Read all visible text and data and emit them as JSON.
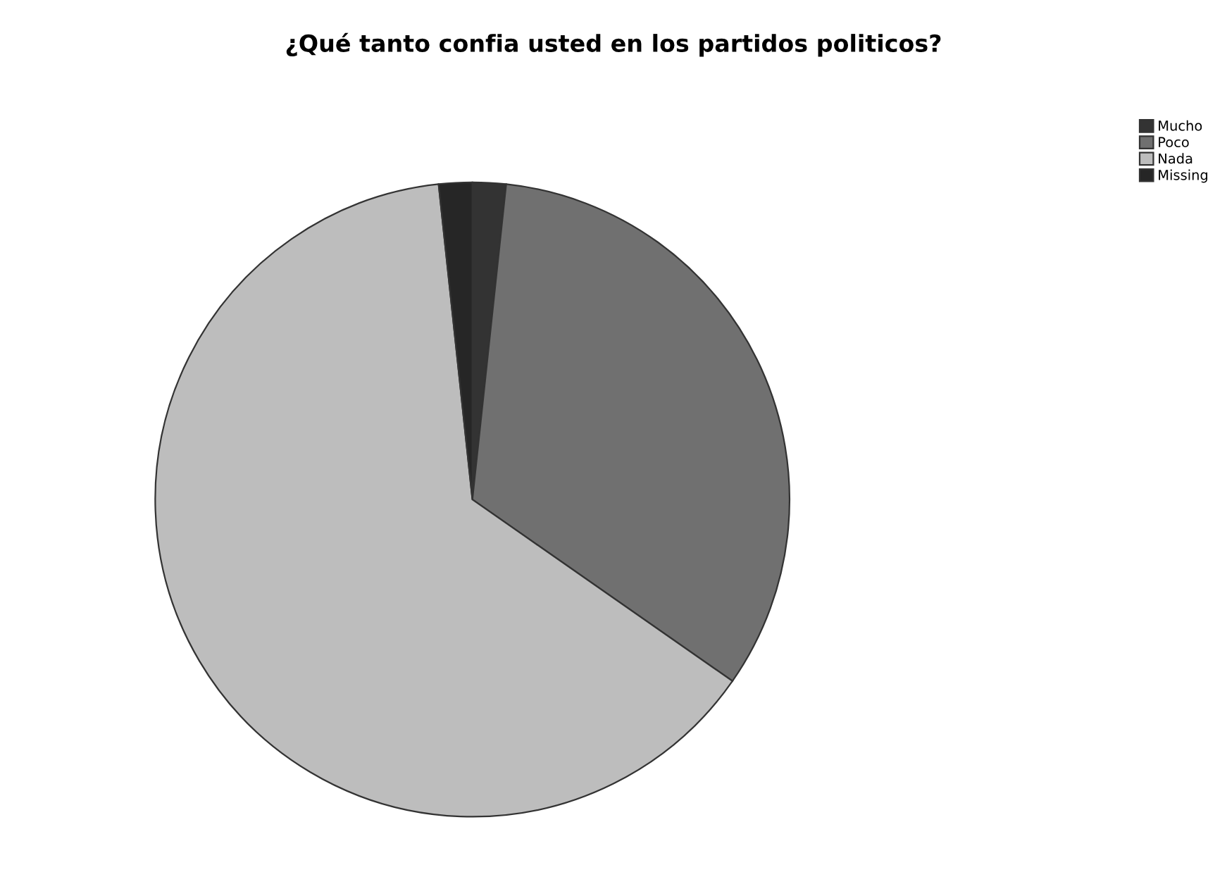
{
  "chart_data": {
    "type": "pie",
    "title": "¿Qué tanto confia usted en los partidos politicos?",
    "categories": [
      "Mucho",
      "Poco",
      "Nada",
      "Missing"
    ],
    "values": [
      1.7,
      33.0,
      63.6,
      1.7
    ],
    "colors": [
      "#333333",
      "#707070",
      "#bdbdbd",
      "#262626"
    ],
    "legend": "top right"
  }
}
